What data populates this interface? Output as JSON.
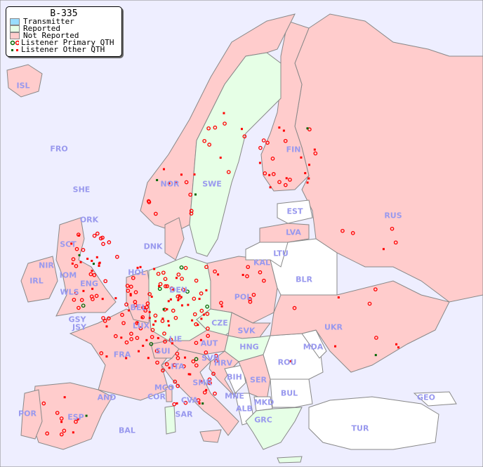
{
  "legend": {
    "title": "B-335",
    "items": [
      {
        "label": "Transmitter",
        "color": "#99ddff"
      },
      {
        "label": "Reported",
        "color": "#e6ffe6"
      },
      {
        "label": "Not Reported",
        "color": "#ffcccc"
      },
      {
        "label": "Listener Primary QTH",
        "marker": "open-circle",
        "colors": [
          "#006600",
          "#ff0000"
        ]
      },
      {
        "label": "Listener Other QTH",
        "marker": "square",
        "colors": [
          "#006600",
          "#ff0000"
        ]
      }
    ]
  },
  "colors": {
    "sea": "#eeeeff",
    "not_reported": "#ffcccc",
    "reported": "#e6ffe6",
    "no_data": "#ffffff",
    "border": "#888888",
    "label": "#9999ee"
  },
  "countries": [
    "ISL",
    "FRO",
    "SHE",
    "ORK",
    "SCT",
    "NIR",
    "IOM",
    "IRL",
    "ENG",
    "WLS",
    "GSY",
    "JSY",
    "HOL",
    "BEL",
    "LUX",
    "DEU",
    "DNK",
    "NOR",
    "SWE",
    "FIN",
    "EST",
    "LVA",
    "LTU",
    "KAL",
    "BLR",
    "POL",
    "CZE",
    "SVK",
    "AUT",
    "HNG",
    "LIE",
    "SUI",
    "FRA",
    "ITA",
    "SVN",
    "HRV",
    "BIH",
    "SER",
    "ROU",
    "MDA",
    "UKR",
    "RUS",
    "BUL",
    "MKD",
    "ALB",
    "GRC",
    "TUR",
    "GEO",
    "MNE",
    "SMR",
    "MCO",
    "COR",
    "CVA",
    "SAR",
    "AND",
    "ESP",
    "POR",
    "BAL"
  ]
}
